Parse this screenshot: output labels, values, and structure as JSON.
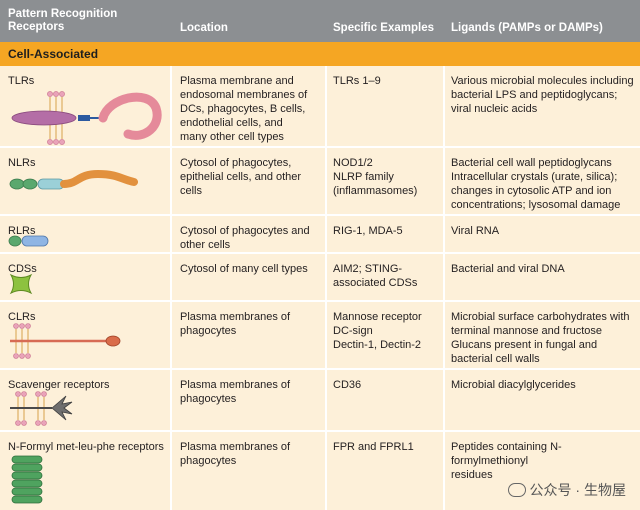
{
  "headers": {
    "receptors": "Pattern Recognition\nReceptors",
    "location": "Location",
    "examples": "Specific Examples",
    "ligands": "Ligands (PAMPs or DAMPs)"
  },
  "section": "Cell-Associated",
  "rows": [
    {
      "name": "TLRs",
      "location": "Plasma membrane and\n   endosomal membranes of\n   DCs, phagocytes, B cells,\n   endothelial cells, and\n   many other cell types",
      "examples": "TLRs 1–9",
      "ligands": "Various microbial molecules including\n   bacterial LPS and peptidoglycans;\n   viral nucleic acids",
      "icon": "tlr-receptor-icon"
    },
    {
      "name": "NLRs",
      "location": "Cytosol of phagocytes,\n   epithelial cells, and other\n   cells",
      "examples": "NOD1/2\nNLRP family\n   (inflammasomes)",
      "ligands": "Bacterial cell wall peptidoglycans\nIntracellular crystals (urate, silica);\n   changes in cytosolic ATP and ion\n   concentrations; lysosomal damage",
      "icon": "nlr-receptor-icon"
    },
    {
      "name": "RLRs",
      "location": "Cytosol of phagocytes and\n   other cells",
      "examples": "RIG-1, MDA-5",
      "ligands": "Viral RNA",
      "icon": "rlr-receptor-icon"
    },
    {
      "name": "CDSs",
      "location": "Cytosol of many cell types",
      "examples": "AIM2; STING-\n   associated CDSs",
      "ligands": "Bacterial and viral DNA",
      "icon": "cds-receptor-icon"
    },
    {
      "name": "CLRs",
      "location": "Plasma membranes of\n   phagocytes",
      "examples": "Mannose receptor\nDC-sign\nDectin-1, Dectin-2",
      "ligands": "Microbial surface carbohydrates with\n   terminal mannose and fructose\nGlucans present in fungal and\n   bacterial cell walls",
      "icon": "clr-receptor-icon"
    },
    {
      "name": "Scavenger receptors",
      "location": "Plasma membranes of\n   phagocytes",
      "examples": "CD36",
      "ligands": "Microbial diacylglycerides",
      "icon": "scavenger-receptor-icon"
    },
    {
      "name": "N-Formyl met-leu-phe receptors",
      "location": "Plasma membranes of\n   phagocytes",
      "examples": "FPR and FPRL1",
      "ligands": "Peptides containing N-formylmethionyl\n   residues",
      "icon": "formyl-receptor-icon"
    }
  ],
  "watermark": "公众号 · 生物屋"
}
